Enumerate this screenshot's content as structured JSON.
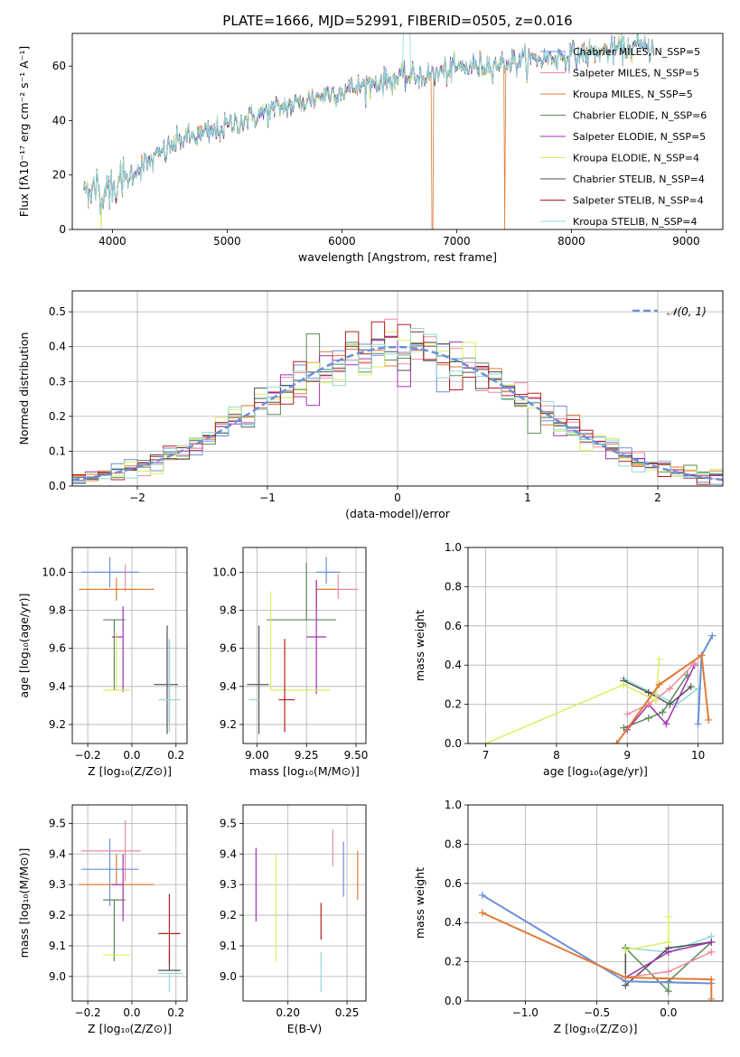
{
  "figure_title": "PLATE=1666, MJD=52991, FIBERID=0505, z=0.016",
  "colors": [
    "#6b8fd8",
    "#f08aa0",
    "#e07a35",
    "#5a8a5a",
    "#a030b0",
    "#d8f060",
    "#505050",
    "#b02020",
    "#90d8d8"
  ],
  "chart_data": [
    {
      "id": "spectrum",
      "type": "line",
      "title": "",
      "xlabel": "wavelength [Angstrom, rest frame]",
      "ylabel": "Flux [fλ10⁻¹⁷ erg cm⁻² s⁻¹ A⁻¹]",
      "xlim": [
        3650,
        9320
      ],
      "ylim": [
        0,
        72
      ],
      "xticks": [
        4000,
        5000,
        6000,
        7000,
        8000,
        9000
      ],
      "yticks": [
        0,
        20,
        40,
        60
      ],
      "grid": false,
      "legend": "top-right",
      "series": [
        {
          "name": "Chabrier MILES, N_SSP=5"
        },
        {
          "name": "Salpeter MILES, N_SSP=5"
        },
        {
          "name": "Kroupa MILES, N_SSP=5"
        },
        {
          "name": "Chabrier ELODIE, N_SSP=6"
        },
        {
          "name": "Salpeter ELODIE, N_SSP=5"
        },
        {
          "name": "Kroupa ELODIE, N_SSP=4"
        },
        {
          "name": "Chabrier STELIB, N_SSP=4"
        },
        {
          "name": "Salpeter STELIB, N_SSP=4"
        },
        {
          "name": "Kroupa STELIB, N_SSP=4"
        }
      ],
      "spectrum_profile": {
        "x": [
          3750,
          3800,
          3900,
          4000,
          4100,
          4200,
          4300,
          4400,
          4500,
          4600,
          4700,
          4800,
          4900,
          5000,
          5200,
          5400,
          5600,
          5800,
          6000,
          6200,
          6400,
          6600,
          6800,
          7000,
          7200,
          7400,
          7600,
          7800,
          8000,
          8200,
          8400,
          8600,
          8700
        ],
        "y": [
          13,
          16,
          14,
          15,
          18,
          22,
          24,
          27,
          30,
          33,
          34,
          35,
          36,
          38,
          41,
          44,
          46,
          49,
          51,
          53,
          55,
          56,
          57,
          59,
          60,
          61,
          62,
          63,
          64,
          65,
          66,
          67,
          67
        ]
      }
    },
    {
      "id": "residuals",
      "type": "histogram",
      "xlabel": "(data-model)/error",
      "ylabel": "Normed distribution",
      "xlim": [
        -2.5,
        2.5
      ],
      "ylim": [
        0,
        0.56
      ],
      "xticks": [
        -2,
        -1,
        0,
        1,
        2
      ],
      "yticks": [
        0.0,
        0.1,
        0.2,
        0.3,
        0.4,
        0.5
      ],
      "grid": true,
      "legend": "top-right",
      "reference": {
        "name": "𝒩(0, 1)",
        "mean": 0,
        "sigma": 1
      },
      "bin_width": 0.1
    },
    {
      "id": "age_vs_Z",
      "type": "scatter",
      "xlabel": "Z [log₁₀(Z/Z⊙)]",
      "ylabel": "age  [log₁₀(age/yr)]",
      "xlim": [
        -0.27,
        0.25
      ],
      "ylim": [
        9.1,
        10.13
      ],
      "xticks": [
        -0.2,
        0.0,
        0.2
      ],
      "yticks": [
        9.2,
        9.4,
        9.6,
        9.8,
        10.0
      ],
      "grid": true,
      "points": [
        {
          "x": -0.1,
          "y": 10.0,
          "xerr": [
            0.13,
            0.13
          ],
          "yerr": [
            0.08,
            0.08
          ],
          "c": 0
        },
        {
          "x": -0.03,
          "y": 10.0,
          "xerr": [
            0.0,
            0.0
          ],
          "yerr": [
            0.1,
            0.04
          ],
          "c": 1
        },
        {
          "x": -0.07,
          "y": 9.91,
          "xerr": [
            0.17,
            0.17
          ],
          "yerr": [
            0.06,
            0.06
          ],
          "c": 2
        },
        {
          "x": -0.08,
          "y": 9.75,
          "xerr": [
            0.05,
            0.05
          ],
          "yerr": [
            0.37,
            0.0
          ],
          "c": 3
        },
        {
          "x": -0.04,
          "y": 9.66,
          "xerr": [
            0.05,
            0.0
          ],
          "yerr": [
            0.29,
            0.16
          ],
          "c": 4
        },
        {
          "x": -0.07,
          "y": 9.38,
          "xerr": [
            0.06,
            0.06
          ],
          "yerr": [
            0.0,
            0.3
          ],
          "c": 5
        },
        {
          "x": 0.16,
          "y": 9.41,
          "xerr": [
            0.06,
            0.05
          ],
          "yerr": [
            0.26,
            0.31
          ],
          "c": 6
        },
        {
          "x": 0.17,
          "y": 9.41,
          "xerr": [
            0.0,
            0.0
          ],
          "yerr": [
            0.2,
            0.23
          ],
          "c": 7
        },
        {
          "x": 0.17,
          "y": 9.33,
          "xerr": [
            0.05,
            0.05
          ],
          "yerr": [
            0.17,
            0.32
          ],
          "c": 8
        }
      ]
    },
    {
      "id": "age_vs_mass",
      "type": "scatter",
      "xlabel": "mass [log₁₀(M/M⊙)]",
      "ylabel": "",
      "xlim": [
        8.93,
        9.55
      ],
      "ylim": [
        9.1,
        10.13
      ],
      "xticks": [
        9.0,
        9.25,
        9.5
      ],
      "yticks": [
        9.2,
        9.4,
        9.6,
        9.8,
        10.0
      ],
      "grid": true,
      "points": [
        {
          "x": 9.35,
          "y": 10.0,
          "xerr": [
            0.05,
            0.07
          ],
          "yerr": [
            0.06,
            0.08
          ],
          "c": 0
        },
        {
          "x": 9.41,
          "y": 9.91,
          "xerr": [
            0.08,
            0.1
          ],
          "yerr": [
            0.05,
            0.08
          ],
          "c": 1
        },
        {
          "x": 9.3,
          "y": 9.91,
          "xerr": [
            0.0,
            0.1
          ],
          "yerr": [
            0.1,
            0.04
          ],
          "c": 2
        },
        {
          "x": 9.25,
          "y": 9.75,
          "xerr": [
            0.2,
            0.15
          ],
          "yerr": [
            0.0,
            0.3
          ],
          "c": 3
        },
        {
          "x": 9.3,
          "y": 9.66,
          "xerr": [
            0.05,
            0.05
          ],
          "yerr": [
            0.3,
            0.3
          ],
          "c": 4
        },
        {
          "x": 9.07,
          "y": 9.38,
          "xerr": [
            0.0,
            0.3
          ],
          "yerr": [
            0.0,
            0.52
          ],
          "c": 5
        },
        {
          "x": 9.01,
          "y": 9.41,
          "xerr": [
            0.06,
            0.05
          ],
          "yerr": [
            0.26,
            0.31
          ],
          "c": 6
        },
        {
          "x": 9.14,
          "y": 9.33,
          "xerr": [
            0.03,
            0.05
          ],
          "yerr": [
            0.17,
            0.32
          ],
          "c": 7
        },
        {
          "x": 9.01,
          "y": 9.33,
          "xerr": [
            0.05,
            0.0
          ],
          "yerr": [
            0.0,
            0.0
          ],
          "c": 8
        }
      ]
    },
    {
      "id": "weight_vs_age",
      "type": "line",
      "xlabel": "age  [log₁₀(age/yr)]",
      "ylabel": "mass weight",
      "xlim": [
        6.75,
        10.35
      ],
      "ylim": [
        0,
        1.0
      ],
      "xticks": [
        7,
        8,
        9,
        10
      ],
      "yticks": [
        0.0,
        0.2,
        0.4,
        0.6,
        0.8,
        1.0
      ],
      "grid": true,
      "series": [
        {
          "c": 8,
          "x": [
            8.95,
            9.4,
            9.7,
            10.0
          ],
          "y": [
            0.33,
            0.25,
            0.2,
            0.28
          ]
        },
        {
          "c": 6,
          "x": [
            8.95,
            9.3,
            9.6,
            9.9
          ],
          "y": [
            0.32,
            0.26,
            0.2,
            0.29
          ]
        },
        {
          "c": 3,
          "x": [
            8.95,
            9.3,
            9.5,
            9.85
          ],
          "y": [
            0.08,
            0.13,
            0.16,
            0.35
          ]
        },
        {
          "c": 4,
          "x": [
            9.0,
            9.3,
            9.55,
            9.95
          ],
          "y": [
            0.07,
            0.2,
            0.1,
            0.4
          ]
        },
        {
          "c": 1,
          "x": [
            9.0,
            9.3,
            9.6,
            9.95
          ],
          "y": [
            0.15,
            0.2,
            0.28,
            0.41
          ]
        },
        {
          "c": 5,
          "x": [
            7.0,
            8.95,
            9.4,
            9.45
          ],
          "y": [
            0.0,
            0.3,
            0.22,
            0.43
          ]
        },
        {
          "c": 0,
          "x": [
            10.0,
            10.05,
            10.2
          ],
          "y": [
            0.1,
            0.45,
            0.55
          ]
        },
        {
          "c": 2,
          "x": [
            8.85,
            9.45,
            10.05,
            10.15
          ],
          "y": [
            0.0,
            0.3,
            0.45,
            0.12
          ]
        }
      ]
    },
    {
      "id": "mass_vs_Z",
      "type": "scatter",
      "xlabel": "Z [log₁₀(Z/Z⊙)]",
      "ylabel": "mass [log₁₀(M/M⊙)]",
      "xlim": [
        -0.27,
        0.25
      ],
      "ylim": [
        8.92,
        9.56
      ],
      "xticks": [
        -0.2,
        0.0,
        0.2
      ],
      "yticks": [
        9.0,
        9.1,
        9.2,
        9.3,
        9.4,
        9.5
      ],
      "grid": true,
      "points": [
        {
          "x": -0.1,
          "y": 9.35,
          "xerr": [
            0.13,
            0.13
          ],
          "yerr": [
            0.12,
            0.1
          ],
          "c": 0
        },
        {
          "x": -0.03,
          "y": 9.41,
          "xerr": [
            0.2,
            0.07
          ],
          "yerr": [
            0.1,
            0.1
          ],
          "c": 1
        },
        {
          "x": -0.07,
          "y": 9.3,
          "xerr": [
            0.17,
            0.17
          ],
          "yerr": [
            0.0,
            0.1
          ],
          "c": 2
        },
        {
          "x": -0.08,
          "y": 9.25,
          "xerr": [
            0.05,
            0.05
          ],
          "yerr": [
            0.2,
            0.0
          ],
          "c": 3
        },
        {
          "x": -0.04,
          "y": 9.3,
          "xerr": [
            0.05,
            0.0
          ],
          "yerr": [
            0.12,
            0.1
          ],
          "c": 4
        },
        {
          "x": -0.07,
          "y": 9.07,
          "xerr": [
            0.06,
            0.06
          ],
          "yerr": [
            0.0,
            0.0
          ],
          "c": 5
        },
        {
          "x": 0.17,
          "y": 9.02,
          "xerr": [
            0.05,
            0.05
          ],
          "yerr": [
            0.0,
            0.07
          ],
          "c": 6
        },
        {
          "x": 0.17,
          "y": 9.14,
          "xerr": [
            0.05,
            0.05
          ],
          "yerr": [
            0.1,
            0.13
          ],
          "c": 7
        },
        {
          "x": 0.17,
          "y": 9.01,
          "xerr": [
            0.05,
            0.06
          ],
          "yerr": [
            0.06,
            0.0
          ],
          "c": 8
        }
      ]
    },
    {
      "id": "mass_vs_ebv",
      "type": "scatter",
      "xlabel": "E(B-V)",
      "ylabel": "",
      "xlim": [
        0.162,
        0.266
      ],
      "ylim": [
        8.92,
        9.56
      ],
      "xticks": [
        0.2,
        0.25
      ],
      "yticks": [
        9.0,
        9.1,
        9.2,
        9.3,
        9.4,
        9.5
      ],
      "grid": true,
      "points": [
        {
          "x": 0.247,
          "y": 9.35,
          "xerr": [
            0.0,
            0.0
          ],
          "yerr": [
            0.09,
            0.09
          ],
          "c": 0
        },
        {
          "x": 0.238,
          "y": 9.41,
          "xerr": [
            0.0,
            0.0
          ],
          "yerr": [
            0.05,
            0.07
          ],
          "c": 1
        },
        {
          "x": 0.259,
          "y": 9.33,
          "xerr": [
            0.0,
            0.0
          ],
          "yerr": [
            0.08,
            0.08
          ],
          "c": 2
        },
        {
          "x": 0.19,
          "y": 9.0,
          "xerr": [
            0.0,
            0.0
          ],
          "yerr": [
            0.0,
            0.0
          ],
          "c": 3
        },
        {
          "x": 0.173,
          "y": 9.3,
          "xerr": [
            0.0,
            0.0
          ],
          "yerr": [
            0.12,
            0.12
          ],
          "c": 4
        },
        {
          "x": 0.19,
          "y": 9.2,
          "xerr": [
            0.0,
            0.0
          ],
          "yerr": [
            0.15,
            0.2
          ],
          "c": 5
        },
        {
          "x": 0.19,
          "y": 9.04,
          "xerr": [
            0.0,
            0.0
          ],
          "yerr": [
            0.0,
            0.0
          ],
          "c": 6
        },
        {
          "x": 0.228,
          "y": 9.18,
          "xerr": [
            0.0,
            0.0
          ],
          "yerr": [
            0.06,
            0.06
          ],
          "c": 7
        },
        {
          "x": 0.228,
          "y": 9.01,
          "xerr": [
            0.0,
            0.0
          ],
          "yerr": [
            0.06,
            0.07
          ],
          "c": 8
        }
      ]
    },
    {
      "id": "weight_vs_Z",
      "type": "line",
      "xlabel": "Z [log₁₀(Z/Z⊙)]",
      "ylabel": "mass weight",
      "xlim": [
        -1.4,
        0.38
      ],
      "ylim": [
        0,
        1.0
      ],
      "xticks": [
        -1.0,
        -0.5,
        0.0
      ],
      "yticks": [
        0.0,
        0.2,
        0.4,
        0.6,
        0.8,
        1.0
      ],
      "grid": true,
      "series": [
        {
          "c": 8,
          "x": [
            -0.3,
            0.0,
            0.3
          ],
          "y": [
            0.27,
            0.25,
            0.33
          ]
        },
        {
          "c": 6,
          "x": [
            -0.3,
            -0.3,
            0.0,
            0.3
          ],
          "y": [
            0.27,
            0.08,
            0.27,
            0.3
          ]
        },
        {
          "c": 3,
          "x": [
            -0.3,
            0.0,
            0.0,
            0.3
          ],
          "y": [
            0.27,
            0.05,
            0.1,
            0.3
          ]
        },
        {
          "c": 5,
          "x": [
            -0.3,
            0.0,
            0.0
          ],
          "y": [
            0.26,
            0.3,
            0.43
          ]
        },
        {
          "c": 4,
          "x": [
            -0.3,
            0.0,
            0.3
          ],
          "y": [
            0.12,
            0.25,
            0.3
          ]
        },
        {
          "c": 1,
          "x": [
            -0.3,
            0.0,
            0.3
          ],
          "y": [
            0.12,
            0.15,
            0.25
          ]
        },
        {
          "c": 0,
          "x": [
            -1.3,
            -0.3,
            0.3
          ],
          "y": [
            0.54,
            0.1,
            0.09
          ]
        },
        {
          "c": 2,
          "x": [
            -1.3,
            -0.3,
            0.3,
            0.3
          ],
          "y": [
            0.45,
            0.12,
            0.11,
            0.01
          ]
        }
      ]
    }
  ]
}
